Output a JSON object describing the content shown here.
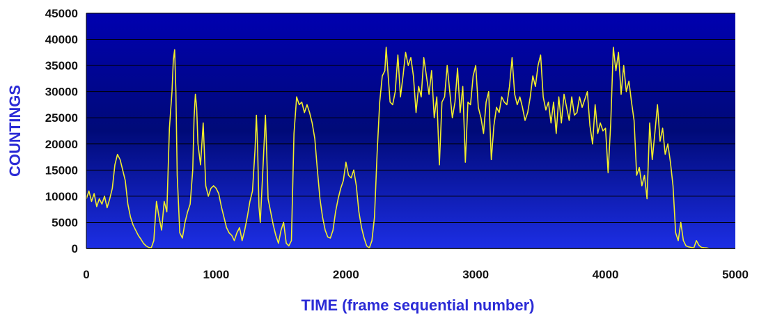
{
  "chart_data": {
    "type": "line",
    "title": "",
    "xlabel": "TIME (frame sequential number)",
    "ylabel": "COUNTINGS",
    "xlim": [
      0,
      5000
    ],
    "ylim": [
      0,
      45000
    ],
    "xticks": [
      0,
      1000,
      2000,
      3000,
      4000,
      5000
    ],
    "yticks": [
      0,
      5000,
      10000,
      15000,
      20000,
      25000,
      30000,
      35000,
      40000,
      45000
    ],
    "xtick_labels": [
      "0",
      "1000",
      "2000",
      "3000",
      "4000",
      "5000"
    ],
    "ytick_labels": [
      "0",
      "5000",
      "10000",
      "15000",
      "20000",
      "25000",
      "30000",
      "35000",
      "40000",
      "45000"
    ],
    "grid": "horizontal",
    "legend": "none",
    "series": [
      {
        "color": "#f2ee2a",
        "points": [
          [
            0,
            9500
          ],
          [
            20,
            11000
          ],
          [
            40,
            9000
          ],
          [
            60,
            10500
          ],
          [
            80,
            8000
          ],
          [
            100,
            9500
          ],
          [
            120,
            8500
          ],
          [
            140,
            10000
          ],
          [
            160,
            7800
          ],
          [
            180,
            9500
          ],
          [
            200,
            11500
          ],
          [
            220,
            16000
          ],
          [
            240,
            18000
          ],
          [
            260,
            17000
          ],
          [
            280,
            15000
          ],
          [
            300,
            13000
          ],
          [
            320,
            8500
          ],
          [
            340,
            6000
          ],
          [
            360,
            4500
          ],
          [
            380,
            3500
          ],
          [
            400,
            2500
          ],
          [
            420,
            1800
          ],
          [
            440,
            1000
          ],
          [
            460,
            500
          ],
          [
            480,
            200
          ],
          [
            500,
            100
          ],
          [
            520,
            1500
          ],
          [
            540,
            9000
          ],
          [
            560,
            6000
          ],
          [
            580,
            3500
          ],
          [
            600,
            9000
          ],
          [
            620,
            7000
          ],
          [
            640,
            23000
          ],
          [
            660,
            30000
          ],
          [
            670,
            36000
          ],
          [
            680,
            38000
          ],
          [
            690,
            30000
          ],
          [
            700,
            14000
          ],
          [
            720,
            3000
          ],
          [
            740,
            2000
          ],
          [
            760,
            5000
          ],
          [
            780,
            7000
          ],
          [
            800,
            8500
          ],
          [
            820,
            15000
          ],
          [
            830,
            25000
          ],
          [
            840,
            29500
          ],
          [
            850,
            27000
          ],
          [
            860,
            20000
          ],
          [
            880,
            16000
          ],
          [
            900,
            24000
          ],
          [
            920,
            12000
          ],
          [
            940,
            10000
          ],
          [
            960,
            11500
          ],
          [
            980,
            12000
          ],
          [
            1000,
            11500
          ],
          [
            1020,
            10500
          ],
          [
            1040,
            8000
          ],
          [
            1060,
            6000
          ],
          [
            1080,
            4000
          ],
          [
            1100,
            3000
          ],
          [
            1120,
            2500
          ],
          [
            1140,
            1500
          ],
          [
            1160,
            3000
          ],
          [
            1180,
            4000
          ],
          [
            1200,
            1500
          ],
          [
            1220,
            3500
          ],
          [
            1240,
            6000
          ],
          [
            1260,
            9000
          ],
          [
            1280,
            11000
          ],
          [
            1300,
            19000
          ],
          [
            1310,
            25500
          ],
          [
            1320,
            19000
          ],
          [
            1330,
            8000
          ],
          [
            1340,
            5000
          ],
          [
            1360,
            15000
          ],
          [
            1380,
            25500
          ],
          [
            1390,
            18000
          ],
          [
            1400,
            9500
          ],
          [
            1420,
            7000
          ],
          [
            1440,
            4500
          ],
          [
            1460,
            2500
          ],
          [
            1480,
            1000
          ],
          [
            1500,
            3500
          ],
          [
            1520,
            5000
          ],
          [
            1540,
            1000
          ],
          [
            1560,
            500
          ],
          [
            1580,
            1500
          ],
          [
            1600,
            22000
          ],
          [
            1620,
            29000
          ],
          [
            1640,
            27500
          ],
          [
            1660,
            28000
          ],
          [
            1680,
            26000
          ],
          [
            1700,
            27500
          ],
          [
            1720,
            26000
          ],
          [
            1740,
            24000
          ],
          [
            1760,
            21000
          ],
          [
            1780,
            15000
          ],
          [
            1800,
            9500
          ],
          [
            1820,
            6000
          ],
          [
            1840,
            3500
          ],
          [
            1860,
            2200
          ],
          [
            1880,
            2000
          ],
          [
            1900,
            3500
          ],
          [
            1920,
            7000
          ],
          [
            1940,
            9500
          ],
          [
            1960,
            11500
          ],
          [
            1980,
            13000
          ],
          [
            2000,
            16500
          ],
          [
            2020,
            14000
          ],
          [
            2040,
            13500
          ],
          [
            2060,
            15000
          ],
          [
            2080,
            12000
          ],
          [
            2100,
            7000
          ],
          [
            2120,
            4000
          ],
          [
            2140,
            2000
          ],
          [
            2160,
            500
          ],
          [
            2180,
            100
          ],
          [
            2200,
            1500
          ],
          [
            2220,
            6000
          ],
          [
            2240,
            18000
          ],
          [
            2260,
            28000
          ],
          [
            2280,
            33000
          ],
          [
            2300,
            34000
          ],
          [
            2310,
            38500
          ],
          [
            2320,
            35000
          ],
          [
            2340,
            28000
          ],
          [
            2360,
            27500
          ],
          [
            2380,
            30000
          ],
          [
            2400,
            37000
          ],
          [
            2420,
            29000
          ],
          [
            2440,
            33000
          ],
          [
            2460,
            37500
          ],
          [
            2480,
            35000
          ],
          [
            2500,
            36500
          ],
          [
            2520,
            33000
          ],
          [
            2540,
            26000
          ],
          [
            2560,
            31000
          ],
          [
            2580,
            29000
          ],
          [
            2600,
            36500
          ],
          [
            2620,
            33000
          ],
          [
            2640,
            29500
          ],
          [
            2660,
            34000
          ],
          [
            2680,
            25000
          ],
          [
            2700,
            29000
          ],
          [
            2720,
            16000
          ],
          [
            2740,
            28000
          ],
          [
            2760,
            29000
          ],
          [
            2780,
            35000
          ],
          [
            2800,
            30000
          ],
          [
            2820,
            25000
          ],
          [
            2840,
            28000
          ],
          [
            2860,
            34500
          ],
          [
            2880,
            26000
          ],
          [
            2900,
            31000
          ],
          [
            2920,
            16500
          ],
          [
            2940,
            28000
          ],
          [
            2960,
            27500
          ],
          [
            2980,
            33000
          ],
          [
            3000,
            35000
          ],
          [
            3020,
            27000
          ],
          [
            3040,
            25000
          ],
          [
            3060,
            22000
          ],
          [
            3080,
            28000
          ],
          [
            3100,
            30000
          ],
          [
            3120,
            17000
          ],
          [
            3140,
            23500
          ],
          [
            3160,
            27000
          ],
          [
            3180,
            26000
          ],
          [
            3200,
            29000
          ],
          [
            3220,
            28000
          ],
          [
            3240,
            27500
          ],
          [
            3260,
            31000
          ],
          [
            3280,
            36500
          ],
          [
            3300,
            29500
          ],
          [
            3320,
            27500
          ],
          [
            3340,
            29000
          ],
          [
            3360,
            27000
          ],
          [
            3380,
            24500
          ],
          [
            3400,
            26000
          ],
          [
            3420,
            29000
          ],
          [
            3440,
            33000
          ],
          [
            3460,
            31000
          ],
          [
            3480,
            35000
          ],
          [
            3500,
            37000
          ],
          [
            3520,
            29000
          ],
          [
            3540,
            26500
          ],
          [
            3560,
            28000
          ],
          [
            3580,
            24000
          ],
          [
            3600,
            28000
          ],
          [
            3620,
            22000
          ],
          [
            3640,
            29000
          ],
          [
            3660,
            24000
          ],
          [
            3680,
            29500
          ],
          [
            3700,
            27000
          ],
          [
            3720,
            24500
          ],
          [
            3740,
            29000
          ],
          [
            3760,
            25500
          ],
          [
            3780,
            26000
          ],
          [
            3800,
            29000
          ],
          [
            3820,
            27000
          ],
          [
            3840,
            28500
          ],
          [
            3860,
            30000
          ],
          [
            3880,
            23500
          ],
          [
            3900,
            20000
          ],
          [
            3920,
            27500
          ],
          [
            3940,
            22000
          ],
          [
            3960,
            24000
          ],
          [
            3980,
            22500
          ],
          [
            4000,
            23000
          ],
          [
            4020,
            14500
          ],
          [
            4040,
            24000
          ],
          [
            4060,
            38500
          ],
          [
            4080,
            34000
          ],
          [
            4100,
            37500
          ],
          [
            4120,
            29500
          ],
          [
            4140,
            35000
          ],
          [
            4160,
            30000
          ],
          [
            4180,
            32000
          ],
          [
            4200,
            28000
          ],
          [
            4220,
            24500
          ],
          [
            4240,
            14000
          ],
          [
            4260,
            15500
          ],
          [
            4280,
            12000
          ],
          [
            4300,
            14000
          ],
          [
            4320,
            9500
          ],
          [
            4340,
            24000
          ],
          [
            4360,
            17000
          ],
          [
            4380,
            22000
          ],
          [
            4400,
            27500
          ],
          [
            4420,
            20500
          ],
          [
            4440,
            23000
          ],
          [
            4460,
            18000
          ],
          [
            4480,
            20000
          ],
          [
            4500,
            16500
          ],
          [
            4520,
            12000
          ],
          [
            4540,
            3000
          ],
          [
            4560,
            1500
          ],
          [
            4580,
            5000
          ],
          [
            4600,
            1500
          ],
          [
            4620,
            500
          ],
          [
            4640,
            300
          ],
          [
            4660,
            200
          ],
          [
            4680,
            100
          ],
          [
            4700,
            1500
          ],
          [
            4720,
            600
          ],
          [
            4740,
            200
          ],
          [
            4760,
            150
          ],
          [
            4780,
            100
          ],
          [
            4800,
            0
          ]
        ]
      }
    ]
  },
  "colors": {
    "plot_top": "#0000b0",
    "plot_middle": "#000a78",
    "plot_bottom": "#1c2ee4",
    "gridline": "#000000",
    "axis_title": "#2b2bd6",
    "tick_label": "#111111"
  }
}
